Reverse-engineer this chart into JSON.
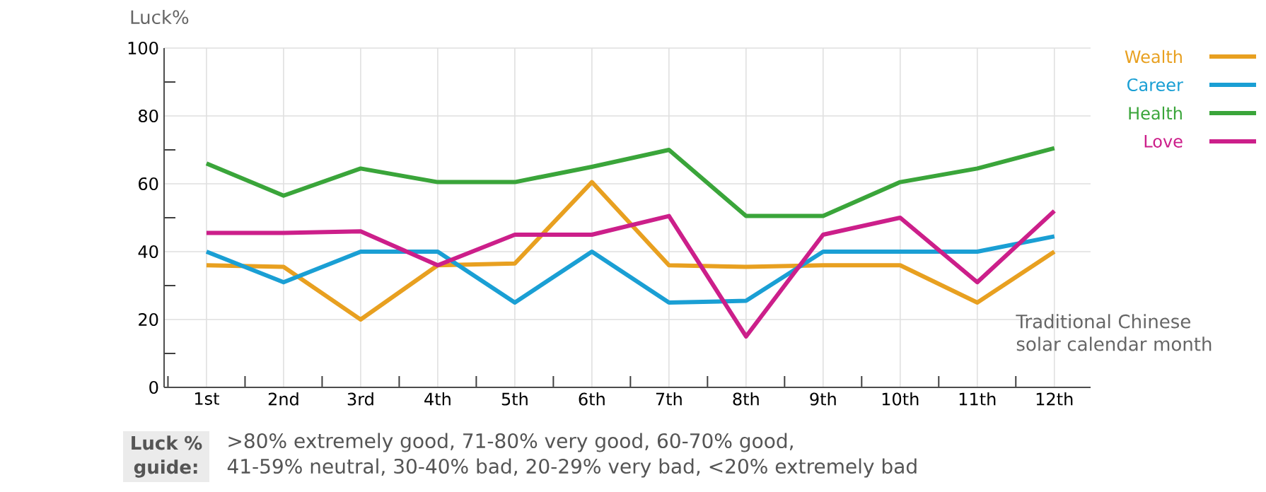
{
  "chart_data": {
    "type": "line",
    "ylabel": "Luck%",
    "xlabel": "Traditional Chinese solar calendar month",
    "categories": [
      "1st",
      "2nd",
      "3rd",
      "4th",
      "5th",
      "6th",
      "7th",
      "8th",
      "9th",
      "10th",
      "11th",
      "12th"
    ],
    "series": [
      {
        "name": "Wealth",
        "color": "#e8a020",
        "values": [
          36,
          35.5,
          20,
          36,
          36.5,
          60.5,
          36,
          35.5,
          36,
          36,
          25,
          40
        ]
      },
      {
        "name": "Career",
        "color": "#1a9fd4",
        "values": [
          40,
          31,
          40,
          40,
          25,
          40,
          25,
          25.5,
          40,
          40,
          40,
          44.5
        ]
      },
      {
        "name": "Health",
        "color": "#3aa53a",
        "values": [
          66,
          56.5,
          64.5,
          60.5,
          60.5,
          65,
          70,
          50.5,
          50.5,
          60.5,
          64.5,
          70.5
        ]
      },
      {
        "name": "Love",
        "color": "#cc1f8a",
        "values": [
          45.5,
          45.5,
          46,
          36,
          45,
          45,
          50.5,
          15,
          45,
          50,
          31,
          52
        ]
      }
    ],
    "ylim": [
      0,
      100
    ],
    "yticks": [
      0,
      {
        "value": 10,
        "label": null
      },
      20,
      {
        "value": 30,
        "label": null
      },
      40,
      {
        "value": 50,
        "label": null
      },
      60,
      {
        "value": 70,
        "label": null
      },
      80,
      {
        "value": 90,
        "label": null
      },
      100
    ],
    "grid": true,
    "legend": "top right",
    "marker": "none",
    "line_style": "solid",
    "annotations": [
      "Luck % guide:",
      ">80% extremely good, 71-80% very good, 60-70% good,",
      "41-59% neutral, 30-40% bad, 20-29% very bad, <20% extremely bad"
    ]
  }
}
